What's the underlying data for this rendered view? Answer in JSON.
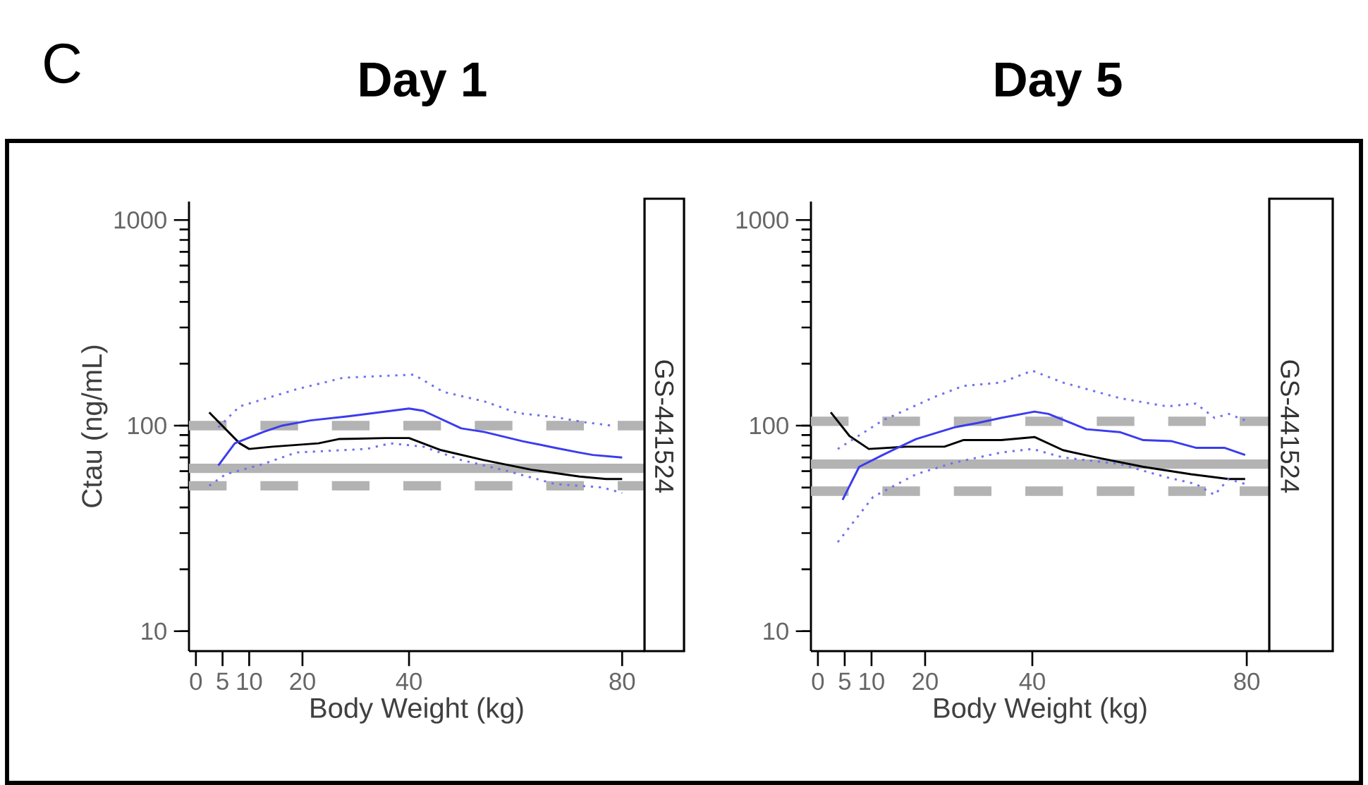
{
  "chart_data": [
    {
      "type": "line",
      "title": "Day 1",
      "subtitle": "GS-441524",
      "annotations": [
        "C"
      ],
      "xlabel": "Body Weight (kg)",
      "ylabel": "Ctau (ng/mL)",
      "xlim": [
        -1.3,
        84.2
      ],
      "ylim": [
        8,
        1230
      ],
      "log": "y",
      "xticks": [
        0,
        5,
        10,
        20,
        40,
        80
      ],
      "yticks": [
        10,
        100,
        1000
      ],
      "grid": false,
      "marker": "none",
      "ref_lines": [
        {
          "axis": "y",
          "value": 62,
          "color": "#b3b3b3",
          "line_style": "solid"
        },
        {
          "axis": "y",
          "value": 100,
          "color": "#b3b3b3",
          "line_style": "dashed"
        },
        {
          "axis": "y",
          "value": 51,
          "color": "#b3b3b3",
          "line_style": "dashed"
        }
      ],
      "series": [
        {
          "color": "#000000",
          "line_style": "solid",
          "x": [
            2.5,
            8.2,
            10,
            14.4,
            23,
            26.8,
            35.6,
            40,
            46,
            54,
            63,
            72,
            77,
            80
          ],
          "values": [
            116,
            82,
            77,
            79,
            82,
            86,
            87,
            87,
            76,
            68,
            61,
            56.5,
            55,
            55
          ]
        },
        {
          "color": "#3b3bf0",
          "line_style": "solid",
          "x": [
            4.2,
            7.3,
            12.6,
            16.2,
            21.5,
            28.6,
            35.6,
            40,
            42.7,
            49.8,
            54.2,
            61.3,
            67.4,
            71.9,
            74.5,
            80
          ],
          "values": [
            64,
            82,
            93,
            100,
            106,
            111,
            117,
            121,
            118,
            97,
            93,
            84,
            78,
            74,
            72,
            70
          ]
        },
        {
          "color": "#7070f0",
          "line_style": "dotted",
          "x": [
            4.2,
            8.2,
            18.8,
            27.7,
            40.9,
            46.4,
            54.2,
            60.4,
            67.4,
            72.8,
            78
          ],
          "values": [
            98,
            124,
            150,
            171,
            177,
            146,
            131,
            115,
            110,
            104,
            100
          ]
        },
        {
          "color": "#7070f0",
          "line_style": "dotted",
          "x": [
            2.5,
            5.6,
            12.6,
            18.8,
            32,
            36.5,
            42.7,
            49.8,
            58.6,
            67.4,
            76.3,
            80
          ],
          "values": [
            51,
            58,
            65,
            74,
            77,
            82,
            79,
            68,
            60,
            52,
            50,
            47
          ]
        }
      ]
    },
    {
      "type": "line",
      "title": "Day 5",
      "subtitle": "GS-441524",
      "xlabel": "Body Weight (kg)",
      "xlim": [
        -1.3,
        84.2
      ],
      "ylim": [
        8,
        1230
      ],
      "log": "y",
      "xticks": [
        0,
        5,
        10,
        20,
        40,
        80
      ],
      "yticks": [
        10,
        100,
        1000
      ],
      "grid": false,
      "marker": "none",
      "ref_lines": [
        {
          "axis": "y",
          "value": 65,
          "color": "#b3b3b3",
          "line_style": "solid"
        },
        {
          "axis": "y",
          "value": 105,
          "color": "#b3b3b3",
          "line_style": "dashed"
        },
        {
          "axis": "y",
          "value": 48,
          "color": "#b3b3b3",
          "line_style": "dashed"
        }
      ],
      "series": [
        {
          "color": "#000000",
          "line_style": "solid",
          "x": [
            2.4,
            5.9,
            9.5,
            16.5,
            23.6,
            27.1,
            34.2,
            40.4,
            45.7,
            51.9,
            60.7,
            69.6,
            76.6,
            79.7
          ],
          "values": [
            116,
            89,
            77,
            79,
            79,
            85,
            85,
            88,
            76,
            70,
            63,
            58,
            55,
            55
          ]
        },
        {
          "color": "#3b3bf0",
          "line_style": "solid",
          "x": [
            4.6,
            7.7,
            12.1,
            18.3,
            25.4,
            29.8,
            34.2,
            40.4,
            43,
            50.1,
            56.3,
            60.7,
            66,
            70.5,
            75.8,
            79.7
          ],
          "values": [
            43.5,
            63,
            72,
            86,
            98,
            103,
            109,
            117,
            114,
            96,
            93,
            85,
            84,
            78,
            78,
            72
          ]
        },
        {
          "color": "#7070f0",
          "line_style": "dotted",
          "x": [
            3.7,
            12.1,
            21.8,
            27.1,
            34.2,
            40,
            45.7,
            56.3,
            65.1,
            70.5,
            74,
            76.6,
            79.7
          ],
          "values": [
            77,
            106,
            138,
            156,
            162,
            185,
            162,
            136,
            124,
            128,
            109,
            114,
            106
          ]
        },
        {
          "color": "#7070f0",
          "line_style": "dotted",
          "x": [
            3.7,
            10.3,
            18.3,
            25.4,
            34.2,
            40,
            45.7,
            56.3,
            65.1,
            70.5,
            74,
            76.6,
            79.7
          ],
          "values": [
            27.1,
            45,
            58,
            66,
            74,
            77,
            70,
            65,
            56,
            52,
            46,
            55,
            52
          ]
        }
      ]
    }
  ]
}
